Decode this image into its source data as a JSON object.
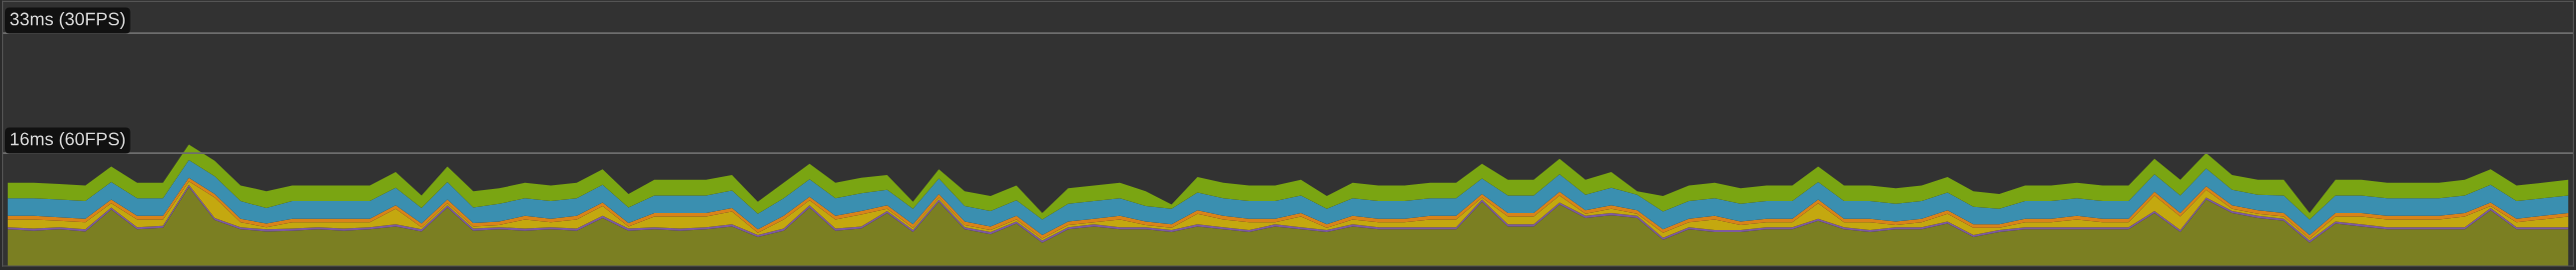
{
  "chart_data": {
    "type": "area",
    "stacked": true,
    "categories": [
      null,
      null,
      null,
      null,
      null,
      null,
      null,
      null,
      null,
      null,
      null,
      null,
      null,
      null,
      null,
      null,
      null,
      null,
      null,
      null,
      null,
      null,
      null,
      null,
      null,
      null,
      null,
      null,
      null,
      null,
      null,
      null,
      null,
      null,
      null,
      null,
      null,
      null,
      null,
      null,
      null,
      null,
      null,
      null,
      null,
      null,
      null,
      null,
      null,
      null,
      null,
      null,
      null,
      null,
      null,
      null,
      null,
      null,
      null,
      null,
      null,
      null,
      null,
      null,
      null,
      null,
      null,
      null,
      null,
      null,
      null,
      null,
      null,
      null,
      null,
      null,
      null,
      null,
      null,
      null,
      null,
      null,
      null,
      null,
      null,
      null,
      null,
      null,
      null,
      null,
      null,
      null,
      null,
      null,
      null,
      null,
      null,
      null,
      null,
      null
    ],
    "ylim": [
      0,
      37.5
    ],
    "ref_lines": [
      {
        "axis": "y",
        "value": 33,
        "label": "33ms (30FPS)",
        "color": "#6e6e6e"
      },
      {
        "axis": "y",
        "value": 16,
        "label": "16ms (60FPS)",
        "color": "#6e6e6e"
      }
    ],
    "series": [
      {
        "color": "#7b7f22",
        "values": [
          5.2,
          5.0,
          5.2,
          4.9,
          8.0,
          5.2,
          5.4,
          11.2,
          6.5,
          5.2,
          4.9,
          5.0,
          5.2,
          5.0,
          5.2,
          5.6,
          4.9,
          8.3,
          5.0,
          5.2,
          5.0,
          5.2,
          5.0,
          6.8,
          5.0,
          5.2,
          5.0,
          5.2,
          5.6,
          4.1,
          5.0,
          8.3,
          5.0,
          5.3,
          7.5,
          4.8,
          9.1,
          5.2,
          4.5,
          6.0,
          3.3,
          5.2,
          5.6,
          5.2,
          5.2,
          4.8,
          5.6,
          5.2,
          4.8,
          5.6,
          5.2,
          4.8,
          5.6,
          5.2,
          5.2,
          5.2,
          5.2,
          9.1,
          5.6,
          5.6,
          8.7,
          6.8,
          7.2,
          6.8,
          3.7,
          5.2,
          4.8,
          4.8,
          5.2,
          5.2,
          6.4,
          5.2,
          4.8,
          5.2,
          5.2,
          6.0,
          4.1,
          4.8,
          5.2,
          5.2,
          5.2,
          5.2,
          5.2,
          7.5,
          4.8,
          9.4,
          7.5,
          6.8,
          6.4,
          3.3,
          6.0,
          5.6,
          5.2,
          5.2,
          5.2,
          5.2,
          7.9,
          5.2,
          5.2,
          5.2
        ]
      },
      {
        "color": "#7e5aa0",
        "values": [
          0.3,
          0.3,
          0.3,
          0.3,
          0.3,
          0.3,
          0.3,
          0.3,
          0.3,
          0.3,
          0.3,
          0.3,
          0.3,
          0.3,
          0.3,
          0.3,
          0.3,
          0.3,
          0.3,
          0.3,
          0.3,
          0.3,
          0.3,
          0.3,
          0.3,
          0.3,
          0.3,
          0.3,
          0.3,
          0.3,
          0.3,
          0.3,
          0.3,
          0.3,
          0.3,
          0.3,
          0.3,
          0.3,
          0.3,
          0.3,
          0.3,
          0.3,
          0.3,
          0.3,
          0.3,
          0.3,
          0.3,
          0.3,
          0.3,
          0.3,
          0.3,
          0.3,
          0.3,
          0.3,
          0.3,
          0.3,
          0.3,
          0.3,
          0.3,
          0.3,
          0.3,
          0.3,
          0.3,
          0.3,
          0.3,
          0.3,
          0.3,
          0.3,
          0.3,
          0.3,
          0.3,
          0.3,
          0.3,
          0.3,
          0.3,
          0.3,
          0.3,
          0.3,
          0.3,
          0.3,
          0.3,
          0.3,
          0.3,
          0.3,
          0.3,
          0.3,
          0.3,
          0.3,
          0.3,
          0.3,
          0.3,
          0.3,
          0.3,
          0.3,
          0.3,
          0.3,
          0.3,
          0.3,
          0.3,
          0.3
        ]
      },
      {
        "color": "#c4a80f",
        "values": [
          1.1,
          1.3,
          0.9,
          1.0,
          0.6,
          1.1,
          0.9,
          0.5,
          2.9,
          0.7,
          0.3,
          0.9,
          0.7,
          0.9,
          0.7,
          2.2,
          0.3,
          0.3,
          0.3,
          0.3,
          1.3,
          0.7,
          1.3,
          1.4,
          0.3,
          1.5,
          1.7,
          1.5,
          1.8,
          0.3,
          1.3,
          0.7,
          1.3,
          1.7,
          0.3,
          0.3,
          0.3,
          0.3,
          0.3,
          0.3,
          0.3,
          0.3,
          0.3,
          1.1,
          0.3,
          0.3,
          1.5,
          1.1,
          1.1,
          0.3,
          1.5,
          0.3,
          0.7,
          0.7,
          0.7,
          1.1,
          1.1,
          0.3,
          1.1,
          1.1,
          1.0,
          0.3,
          0.6,
          0.3,
          0.7,
          0.7,
          1.5,
          0.7,
          0.7,
          0.7,
          2.2,
          0.7,
          1.1,
          0.3,
          0.7,
          1.1,
          1.0,
          0.3,
          0.7,
          0.7,
          1.1,
          0.7,
          0.7,
          2.2,
          1.9,
          1.1,
          0.3,
          0.3,
          0.3,
          0.3,
          0.7,
          1.1,
          1.1,
          1.1,
          1.1,
          1.5,
          0.3,
          0.7,
          1.1,
          1.5
        ]
      },
      {
        "color": "#d9831a",
        "values": [
          0.5,
          0.5,
          0.5,
          0.5,
          0.5,
          0.5,
          0.5,
          0.5,
          0.5,
          0.5,
          0.5,
          0.5,
          0.5,
          0.5,
          0.5,
          0.5,
          0.5,
          0.5,
          0.5,
          0.5,
          0.5,
          0.5,
          0.5,
          0.5,
          0.5,
          0.5,
          0.5,
          0.5,
          0.5,
          0.5,
          0.5,
          0.5,
          0.5,
          0.5,
          0.5,
          0.5,
          0.5,
          0.5,
          0.5,
          0.5,
          0.5,
          0.5,
          0.5,
          0.5,
          0.5,
          0.5,
          0.5,
          0.5,
          0.5,
          0.5,
          0.5,
          0.5,
          0.5,
          0.5,
          0.5,
          0.5,
          0.5,
          0.5,
          0.5,
          0.5,
          0.5,
          0.5,
          0.5,
          0.5,
          0.5,
          0.5,
          0.5,
          0.5,
          0.5,
          0.5,
          0.5,
          0.5,
          0.5,
          0.5,
          0.5,
          0.5,
          0.5,
          0.5,
          0.5,
          0.5,
          0.5,
          0.5,
          0.5,
          0.5,
          0.5,
          0.5,
          0.5,
          0.5,
          0.5,
          0.5,
          0.5,
          0.5,
          0.5,
          0.5,
          0.5,
          0.5,
          0.5,
          0.5,
          0.5,
          0.5
        ]
      },
      {
        "color": "#3a8fb0",
        "values": [
          2.5,
          2.5,
          2.5,
          2.5,
          2.5,
          2.5,
          2.5,
          2.5,
          2.5,
          2.5,
          2.2,
          2.5,
          2.5,
          2.5,
          2.5,
          2.5,
          2.2,
          2.5,
          2.2,
          2.5,
          2.5,
          2.5,
          2.5,
          2.5,
          2.2,
          2.5,
          2.5,
          2.5,
          2.5,
          2.2,
          2.5,
          2.5,
          2.5,
          2.5,
          2.2,
          2.2,
          2.2,
          2.2,
          2.2,
          2.2,
          2.2,
          2.5,
          2.5,
          2.5,
          2.2,
          2.2,
          2.5,
          2.5,
          2.5,
          2.5,
          2.5,
          2.2,
          2.5,
          2.5,
          2.5,
          2.5,
          2.5,
          2.2,
          2.5,
          2.5,
          2.5,
          2.2,
          2.5,
          2.2,
          2.5,
          2.5,
          2.5,
          2.5,
          2.5,
          2.5,
          2.5,
          2.5,
          2.5,
          2.5,
          2.5,
          2.5,
          2.5,
          2.2,
          2.5,
          2.5,
          2.5,
          2.5,
          2.5,
          2.5,
          2.5,
          2.5,
          2.2,
          2.2,
          2.5,
          2.2,
          2.5,
          2.5,
          2.5,
          2.5,
          2.5,
          2.5,
          2.5,
          2.5,
          2.5,
          2.5
        ]
      },
      {
        "color": "#7aa512",
        "values": [
          2.2,
          2.2,
          2.2,
          2.2,
          2.2,
          2.2,
          2.2,
          2.2,
          2.2,
          2.2,
          2.4,
          2.2,
          2.2,
          2.2,
          2.2,
          2.2,
          1.8,
          2.2,
          2.3,
          2.2,
          2.2,
          2.2,
          2.2,
          2.2,
          1.9,
          2.2,
          2.2,
          2.2,
          2.2,
          1.7,
          2.2,
          2.2,
          2.2,
          2.2,
          2.1,
          1.0,
          1.3,
          2.1,
          2.1,
          2.1,
          0.9,
          2.2,
          2.2,
          2.2,
          2.1,
          0.6,
          2.2,
          2.2,
          2.2,
          2.2,
          2.2,
          1.8,
          2.2,
          2.2,
          2.2,
          2.2,
          2.2,
          2.1,
          2.2,
          2.2,
          2.2,
          2.1,
          2.2,
          0.5,
          2.2,
          2.2,
          2.2,
          2.2,
          2.2,
          2.2,
          2.2,
          2.2,
          2.2,
          2.2,
          2.2,
          2.2,
          2.2,
          2.1,
          2.2,
          2.2,
          2.2,
          2.2,
          2.2,
          2.2,
          2.2,
          2.2,
          2.1,
          2.1,
          2.2,
          0.9,
          2.2,
          2.2,
          2.2,
          2.2,
          2.2,
          2.2,
          2.2,
          2.2,
          2.2,
          2.2
        ]
      }
    ]
  }
}
